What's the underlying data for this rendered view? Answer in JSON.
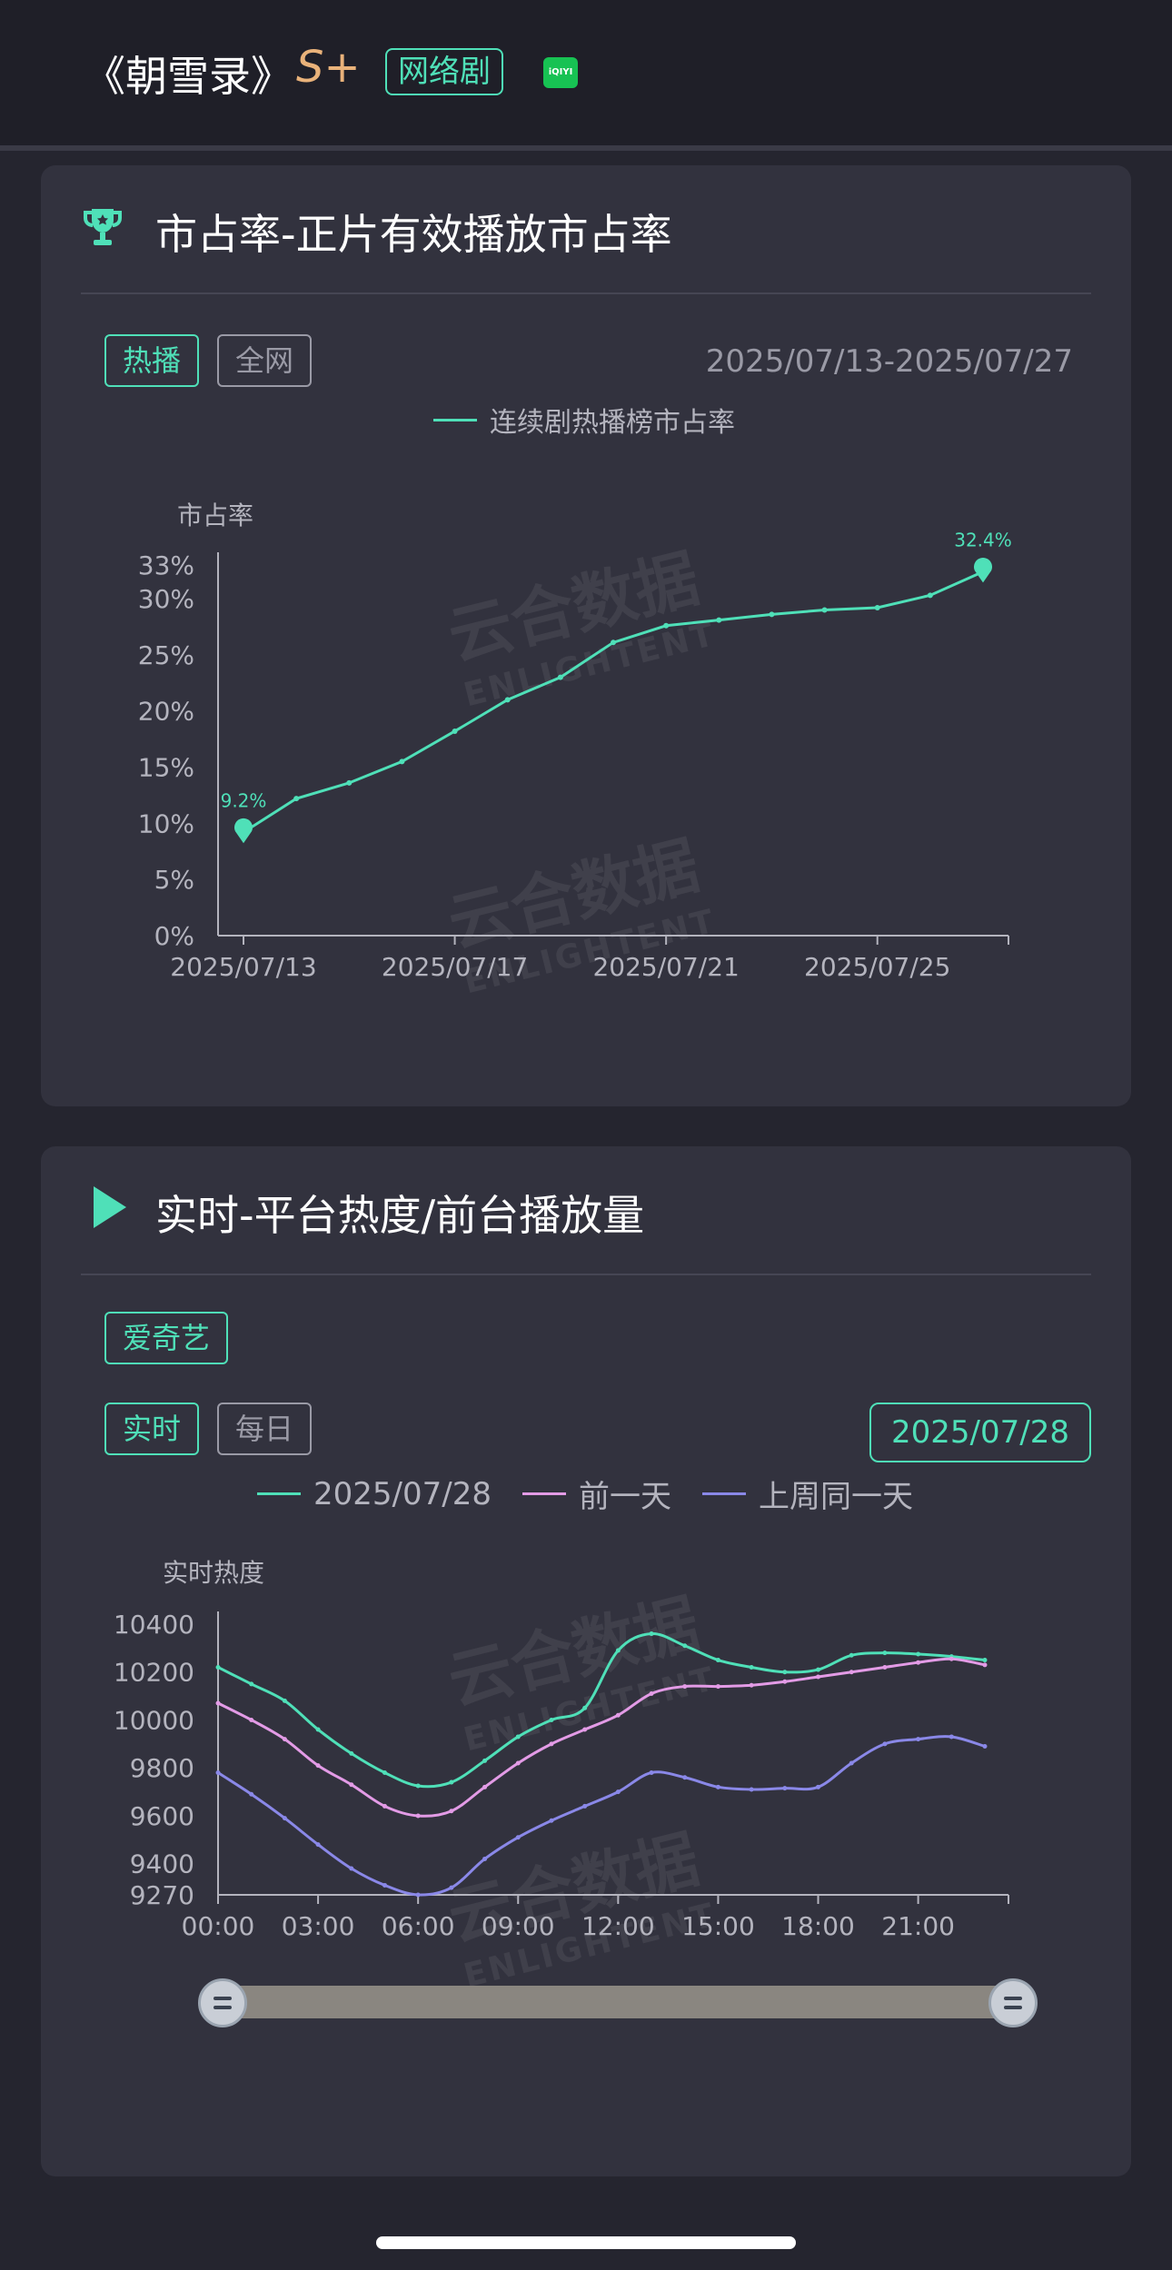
{
  "header": {
    "title": "《朝雪录》",
    "grade": "S+",
    "genre_tag": "网络剧",
    "platform_logo": "iQIYI"
  },
  "card1": {
    "icon": "trophy-icon",
    "title": "市占率-正片有效播放市占率",
    "filters": [
      "热播",
      "全网"
    ],
    "active_filter": "热播",
    "date_range": "2025/07/13-2025/07/27",
    "legend": "连续剧热播榜市占率",
    "ylabel": "市占率"
  },
  "card2": {
    "icon": "play-icon",
    "title": "实时-平台热度/前台播放量",
    "platform_tag": "爱奇艺",
    "modes": [
      "实时",
      "每日"
    ],
    "active_mode": "实时",
    "date_button": "2025/07/28",
    "legend": [
      "2025/07/28",
      "前一天",
      "上周同一天"
    ],
    "ylabel": "实时热度"
  },
  "colors": {
    "accent": "#4fe0b8",
    "series_today": "#4fe0b8",
    "series_prev_day": "#e39be6",
    "series_last_week": "#8a88e8",
    "card_bg": "#32323e",
    "page_bg": "#25252f"
  },
  "watermark": {
    "text": "云合数据",
    "sub": "ENLIGHTENT"
  },
  "chart_data": [
    {
      "type": "line",
      "title": "",
      "ylabel": "市占率",
      "xlabel": "",
      "x": [
        "2025/07/13",
        "2025/07/14",
        "2025/07/15",
        "2025/07/16",
        "2025/07/17",
        "2025/07/18",
        "2025/07/19",
        "2025/07/20",
        "2025/07/21",
        "2025/07/22",
        "2025/07/23",
        "2025/07/24",
        "2025/07/25",
        "2025/07/26",
        "2025/07/27"
      ],
      "x_tick_labels": [
        "2025/07/13",
        "2025/07/17",
        "2025/07/21",
        "2025/07/25"
      ],
      "y_tick_labels": [
        "0%",
        "5%",
        "10%",
        "15%",
        "20%",
        "25%",
        "30%",
        "33%"
      ],
      "ylim": [
        0,
        33
      ],
      "series": [
        {
          "name": "连续剧热播榜市占率",
          "values": [
            9.2,
            12.2,
            13.6,
            15.5,
            18.2,
            21.0,
            23.0,
            26.1,
            27.6,
            28.1,
            28.6,
            29.0,
            29.2,
            30.3,
            32.4
          ]
        }
      ],
      "annotations": [
        {
          "x": "2025/07/13",
          "label": "9.2%"
        },
        {
          "x": "2025/07/27",
          "label": "32.4%"
        }
      ],
      "grid": false,
      "legend_position": "top-center"
    },
    {
      "type": "line",
      "title": "",
      "ylabel": "实时热度",
      "xlabel": "",
      "x": [
        "00:00",
        "01:00",
        "02:00",
        "03:00",
        "04:00",
        "05:00",
        "06:00",
        "07:00",
        "08:00",
        "09:00",
        "10:00",
        "11:00",
        "12:00",
        "13:00",
        "14:00",
        "15:00",
        "16:00",
        "17:00",
        "18:00",
        "19:00",
        "20:00",
        "21:00",
        "22:00",
        "23:00"
      ],
      "x_tick_labels": [
        "00:00",
        "03:00",
        "06:00",
        "09:00",
        "12:00",
        "15:00",
        "18:00",
        "21:00"
      ],
      "y_tick_labels": [
        "9270",
        "9400",
        "9600",
        "9800",
        "10000",
        "10200",
        "10400"
      ],
      "ylim": [
        9270,
        10400
      ],
      "series": [
        {
          "name": "2025/07/28",
          "values": [
            10220,
            10150,
            10080,
            9960,
            9860,
            9780,
            9725,
            9740,
            9830,
            9930,
            10000,
            10050,
            10290,
            10360,
            10310,
            10250,
            10220,
            10200,
            10210,
            10270,
            10280,
            10275,
            10265,
            10250
          ]
        },
        {
          "name": "前一天",
          "values": [
            10070,
            10000,
            9920,
            9810,
            9730,
            9640,
            9600,
            9620,
            9720,
            9820,
            9900,
            9960,
            10020,
            10110,
            10140,
            10140,
            10145,
            10160,
            10180,
            10200,
            10220,
            10240,
            10255,
            10230
          ]
        },
        {
          "name": "上周同一天",
          "values": [
            9780,
            9690,
            9590,
            9480,
            9380,
            9310,
            9270,
            9300,
            9420,
            9510,
            9580,
            9640,
            9700,
            9780,
            9760,
            9720,
            9710,
            9715,
            9720,
            9820,
            9900,
            9920,
            9930,
            9890
          ]
        }
      ],
      "grid": false,
      "legend_position": "top-center"
    }
  ]
}
